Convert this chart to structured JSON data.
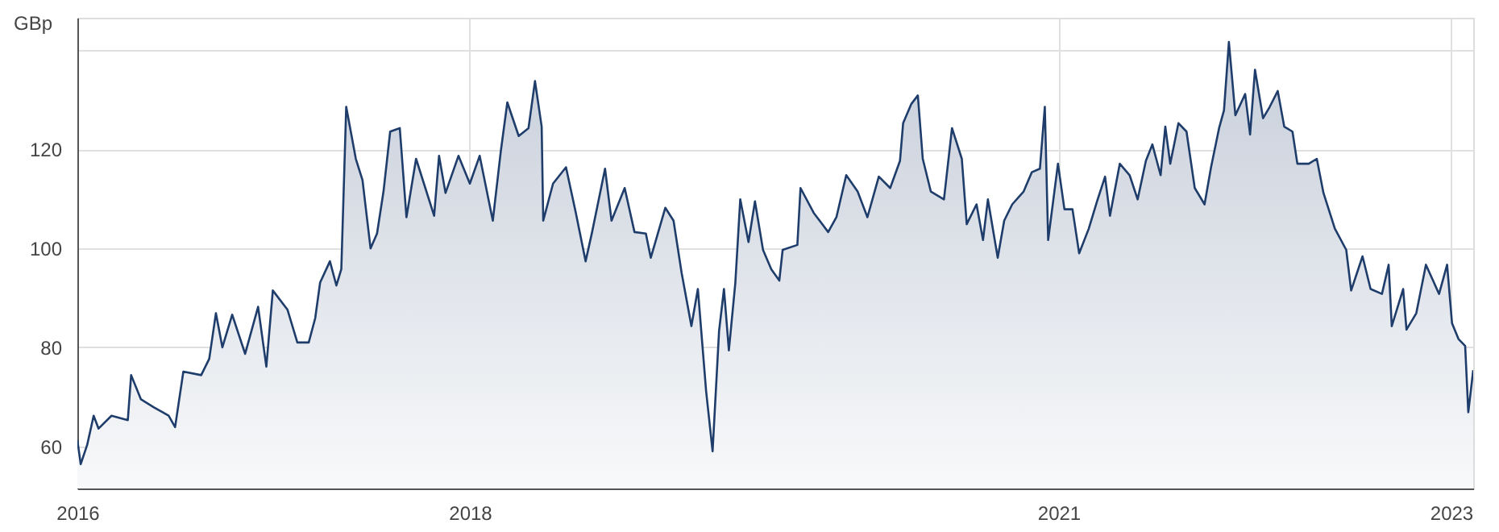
{
  "chart_data": {
    "type": "area",
    "ylabel": "GBp",
    "grid": true,
    "marker": "none",
    "line_style": "solid",
    "xlim": [
      2016,
      2023.113
    ],
    "xticks": [
      2016,
      2018,
      2021,
      2023
    ],
    "ylim": [
      51.5,
      146.6
    ],
    "yticks": [
      60,
      80,
      100,
      120,
      {
        "value": 140,
        "label": null
      }
    ],
    "series": [
      {
        "color": "#1f3d6b",
        "x": [
          2016.0,
          2016.017,
          2016.05,
          2016.083,
          2016.108,
          2016.174,
          2016.257,
          2016.274,
          2016.324,
          2016.39,
          2016.465,
          2016.498,
          2016.54,
          2016.631,
          2016.672,
          2016.706,
          2016.739,
          2016.789,
          2016.855,
          2016.921,
          2016.963,
          2016.996,
          2017.071,
          2017.121,
          2017.179,
          2017.212,
          2017.237,
          2017.287,
          2017.32,
          2017.345,
          2017.37,
          2017.419,
          2017.453,
          2017.494,
          2017.527,
          2017.56,
          2017.594,
          2017.643,
          2017.677,
          2017.726,
          2017.818,
          2017.843,
          2017.876,
          2017.942,
          2018.0,
          2018.05,
          2018.117,
          2018.158,
          2018.191,
          2018.249,
          2018.299,
          2018.332,
          2018.366,
          2018.374,
          2018.424,
          2018.49,
          2018.54,
          2018.59,
          2018.623,
          2018.689,
          2018.722,
          2018.789,
          2018.839,
          2018.897,
          2018.922,
          2018.996,
          2019.038,
          2019.079,
          2019.129,
          2019.162,
          2019.204,
          2019.237,
          2019.27,
          2019.295,
          2019.32,
          2019.353,
          2019.378,
          2019.42,
          2019.453,
          2019.494,
          2019.536,
          2019.577,
          2019.594,
          2019.669,
          2019.685,
          2019.752,
          2019.826,
          2019.868,
          2019.918,
          2019.976,
          2020.026,
          2020.084,
          2020.142,
          2020.192,
          2020.208,
          2020.25,
          2020.283,
          2020.308,
          2020.349,
          2020.416,
          2020.457,
          2020.507,
          2020.532,
          2020.582,
          2020.615,
          2020.64,
          2020.69,
          2020.723,
          2020.764,
          2020.822,
          2020.864,
          2020.905,
          2020.93,
          2020.947,
          2020.997,
          2021.03,
          2021.071,
          2021.105,
          2021.154,
          2021.196,
          2021.237,
          2021.262,
          2021.312,
          2021.362,
          2021.403,
          2021.445,
          2021.478,
          2021.52,
          2021.544,
          2021.569,
          2021.611,
          2021.652,
          2021.694,
          2021.744,
          2021.777,
          2021.818,
          2021.843,
          2021.868,
          2021.901,
          2021.951,
          2021.976,
          2022.001,
          2022.042,
          2022.076,
          2022.117,
          2022.15,
          2022.192,
          2022.217,
          2022.275,
          2022.316,
          2022.35,
          2022.408,
          2022.466,
          2022.491,
          2022.549,
          2022.59,
          2022.648,
          2022.682,
          2022.698,
          2022.756,
          2022.773,
          2022.823,
          2022.872,
          2022.939,
          2022.98,
          2023.005,
          2023.038,
          2023.072,
          2023.088,
          2023.113
        ],
        "values": [
          61.3,
          56.4,
          60.3,
          66.2,
          63.6,
          66.2,
          65.3,
          74.4,
          69.5,
          67.9,
          66.2,
          63.9,
          75.1,
          74.4,
          77.7,
          86.9,
          80.0,
          86.6,
          78.7,
          88.2,
          76.1,
          91.5,
          87.6,
          81.0,
          81.0,
          85.9,
          93.1,
          97.4,
          92.5,
          95.8,
          128.6,
          118.1,
          113.8,
          100.0,
          103.0,
          111.5,
          123.6,
          124.3,
          106.3,
          118.1,
          106.6,
          118.7,
          111.2,
          118.7,
          113.1,
          118.7,
          105.6,
          119.7,
          129.5,
          122.7,
          124.3,
          133.8,
          124.6,
          105.6,
          113.1,
          116.4,
          107.2,
          97.4,
          103.3,
          116.1,
          105.6,
          112.2,
          103.3,
          103.0,
          98.1,
          108.2,
          105.6,
          95.1,
          84.3,
          91.8,
          71.2,
          59.0,
          83.3,
          91.8,
          79.4,
          93.1,
          109.9,
          101.3,
          109.5,
          99.7,
          95.8,
          93.5,
          99.7,
          100.7,
          112.2,
          107.2,
          103.3,
          106.3,
          114.8,
          111.5,
          106.3,
          114.5,
          112.2,
          117.7,
          125.3,
          129.2,
          130.9,
          118.1,
          111.5,
          109.9,
          124.3,
          118.1,
          104.9,
          108.9,
          101.7,
          109.9,
          98.1,
          105.6,
          108.9,
          111.5,
          115.4,
          116.1,
          128.6,
          101.7,
          117.1,
          107.9,
          107.9,
          99.0,
          104.0,
          109.5,
          114.5,
          106.6,
          117.1,
          114.8,
          109.9,
          117.7,
          121.0,
          114.8,
          124.6,
          117.1,
          125.3,
          123.6,
          112.2,
          108.9,
          116.4,
          124.3,
          127.9,
          141.7,
          126.9,
          131.2,
          123.0,
          136.1,
          126.3,
          128.6,
          131.8,
          124.6,
          123.6,
          117.1,
          117.1,
          118.1,
          111.2,
          104.0,
          99.7,
          91.5,
          98.4,
          91.8,
          90.8,
          96.7,
          84.3,
          91.8,
          83.6,
          86.9,
          96.7,
          90.8,
          96.7,
          84.9,
          81.7,
          80.3,
          66.9,
          75.4
        ]
      }
    ]
  }
}
